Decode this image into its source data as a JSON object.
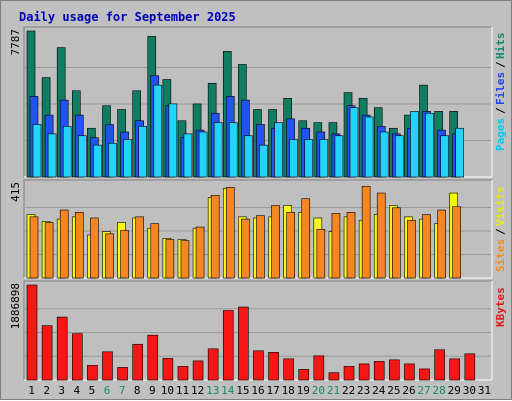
{
  "chart_data": {
    "type": "bar",
    "title": "Daily usage for September 2025",
    "categories": [
      "1",
      "2",
      "3",
      "4",
      "5",
      "6",
      "7",
      "8",
      "9",
      "10",
      "11",
      "12",
      "13",
      "14",
      "15",
      "16",
      "17",
      "18",
      "19",
      "20",
      "21",
      "22",
      "23",
      "24",
      "25",
      "26",
      "27",
      "28",
      "29",
      "30",
      "31"
    ],
    "weekend_days": [
      "6",
      "7",
      "13",
      "14",
      "20",
      "21",
      "27",
      "28"
    ],
    "panels": [
      {
        "id": "hits-files-pages",
        "max_label": "7787",
        "ylim": [
          0,
          7787
        ],
        "side_labels": [
          {
            "text": "Pages",
            "color": "#00c8f8"
          },
          {
            "text": "Files",
            "color": "#1e44f5"
          },
          {
            "text": "Hits",
            "color": "#0b8a6e"
          }
        ],
        "series": [
          {
            "name": "Hits",
            "color": "#107c62",
            "values": [
              7787,
              5300,
              6900,
              4600,
              2600,
              3800,
              3600,
              4600,
              7500,
              5200,
              3000,
              3900,
              5000,
              6700,
              6000,
              3600,
              3600,
              4200,
              3000,
              2900,
              2900,
              4500,
              4200,
              3700,
              2600,
              3300,
              4900,
              3500,
              3500,
              null,
              null
            ]
          },
          {
            "name": "Files",
            "color": "#2152f2",
            "values": [
              4300,
              3300,
              4100,
              3300,
              2100,
              2800,
              2400,
              3000,
              5400,
              3800,
              2100,
              2500,
              3400,
              4300,
              4100,
              2800,
              2600,
              3100,
              2600,
              2400,
              2300,
              3800,
              3300,
              2700,
              2300,
              2600,
              3500,
              2500,
              2300,
              null,
              null
            ]
          },
          {
            "name": "Pages",
            "color": "#22d3fc",
            "values": [
              2800,
              2300,
              2700,
              2200,
              1700,
              1800,
              2000,
              2700,
              4900,
              3900,
              2300,
              2400,
              2900,
              2900,
              2200,
              1700,
              2900,
              2000,
              2000,
              2000,
              2200,
              3700,
              3200,
              2400,
              2200,
              3500,
              3400,
              2200,
              2600,
              null,
              null
            ]
          }
        ]
      },
      {
        "id": "visits-sites",
        "max_label": "415",
        "ylim": [
          0,
          415
        ],
        "side_labels": [
          {
            "text": "Sites",
            "color": "#f58a1e"
          },
          {
            "text": "Visits",
            "color": "#eaea12"
          }
        ],
        "series": [
          {
            "name": "Visits",
            "color": "#f8f818",
            "values": [
              280,
              250,
              260,
              270,
              190,
              205,
              245,
              265,
              220,
              175,
              170,
              220,
              355,
              395,
              270,
              265,
              270,
              320,
              290,
              265,
              205,
              270,
              255,
              280,
              320,
              270,
              260,
              240,
              375,
              null,
              null
            ]
          },
          {
            "name": "Sites",
            "color": "#f58622",
            "values": [
              270,
              245,
              300,
              290,
              265,
              195,
              210,
              270,
              240,
              170,
              165,
              225,
              365,
              400,
              260,
              275,
              320,
              290,
              350,
              215,
              285,
              290,
              405,
              375,
              310,
              255,
              280,
              300,
              315,
              null,
              null
            ]
          }
        ]
      },
      {
        "id": "kbytes",
        "max_label": "1886898",
        "ylim": [
          0,
          1886898
        ],
        "side_labels": [
          {
            "text": "KBytes",
            "color": "#e31818"
          }
        ],
        "series": [
          {
            "name": "KBytes",
            "color": "#f51616",
            "values": [
              1886898,
              1080000,
              1250000,
              920000,
              290000,
              560000,
              250000,
              710000,
              890000,
              430000,
              270000,
              380000,
              620000,
              1380000,
              1450000,
              580000,
              550000,
              420000,
              210000,
              480000,
              145000,
              270000,
              320000,
              370000,
              400000,
              320000,
              220000,
              600000,
              420000,
              520000,
              null
            ]
          }
        ]
      }
    ]
  },
  "colors": {
    "background": "#c0c0c0",
    "plot_background": "#bfbfbf",
    "title": "#0000b8",
    "axis_label": "#000000",
    "weekend_label": "#1c8a5c"
  }
}
